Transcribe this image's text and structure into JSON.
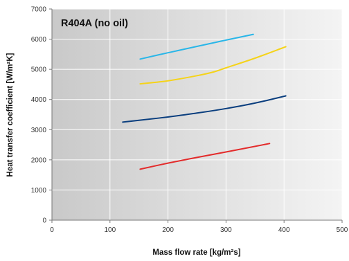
{
  "chart_data": {
    "type": "line",
    "title": "R404A (no oil)",
    "xlabel": "Mass flow rate [kg/m²s]",
    "ylabel": "Heat transfer coefficient [W/m²K]",
    "xlim": [
      0,
      500
    ],
    "ylim": [
      0,
      7000
    ],
    "xticks": [
      "0",
      "100",
      "200",
      "300",
      "400",
      "500"
    ],
    "yticks": [
      "0",
      "1000",
      "2000",
      "3000",
      "4000",
      "5000",
      "6000",
      "7000"
    ],
    "grid": true,
    "series": [
      {
        "color": "#29b6e8",
        "x": [
          152,
          200,
          250,
          300,
          347
        ],
        "y": [
          5340,
          5550,
          5760,
          5970,
          6160
        ]
      },
      {
        "color": "#f5d319",
        "x": [
          152,
          200,
          250,
          280,
          300,
          350,
          403
        ],
        "y": [
          4520,
          4620,
          4790,
          4920,
          5050,
          5370,
          5750
        ]
      },
      {
        "color": "#0a3e7e",
        "x": [
          122,
          150,
          200,
          250,
          300,
          350,
          403
        ],
        "y": [
          3250,
          3310,
          3420,
          3550,
          3700,
          3880,
          4120
        ]
      },
      {
        "color": "#e32b2b",
        "x": [
          152,
          200,
          250,
          300,
          375
        ],
        "y": [
          1690,
          1890,
          2080,
          2260,
          2540
        ]
      }
    ]
  }
}
